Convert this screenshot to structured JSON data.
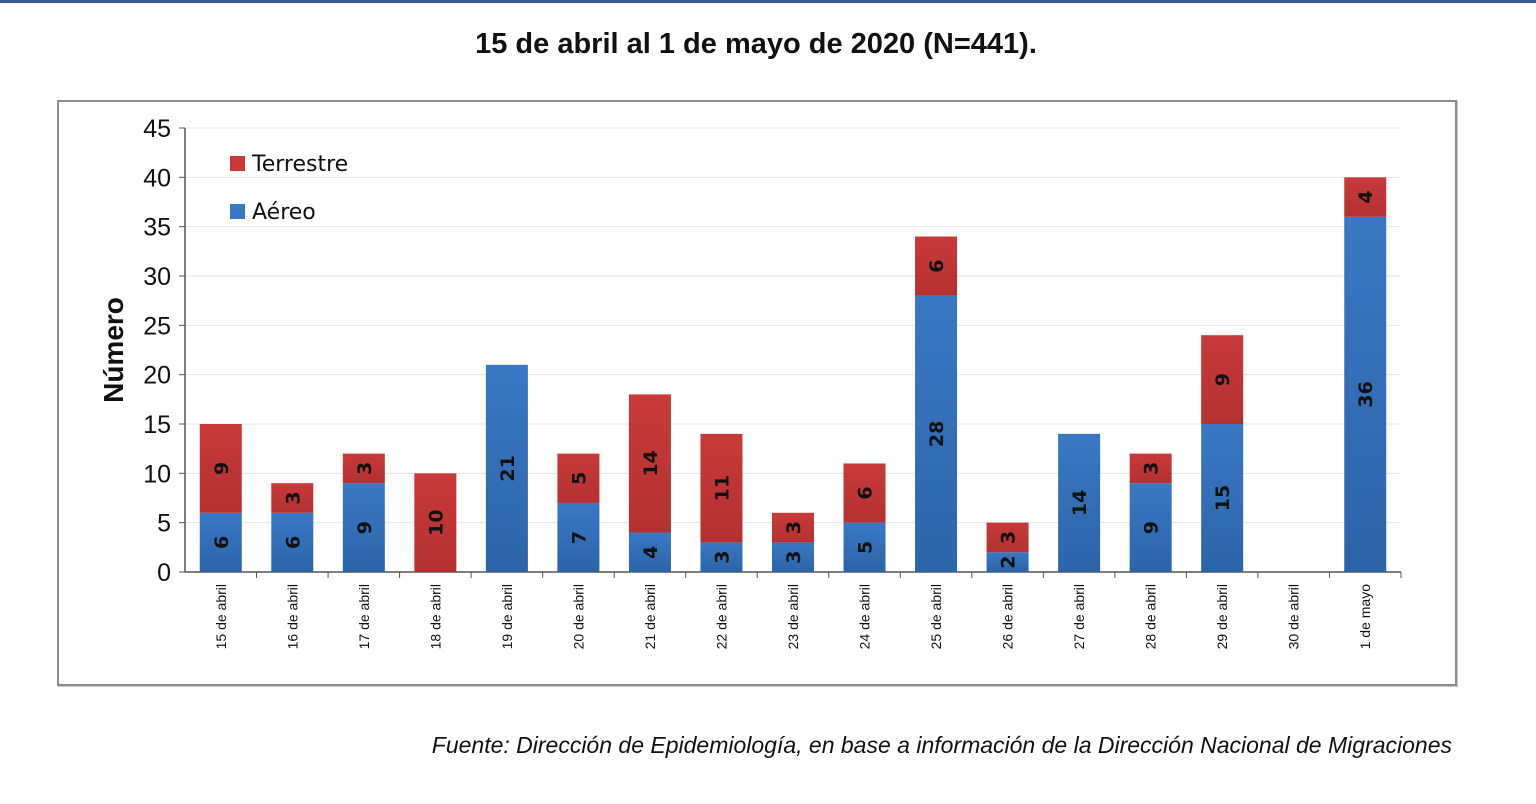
{
  "title": "15 de abril al 1 de mayo de 2020 (N=441).",
  "source": "Fuente: Dirección de Epidemiología, en base a información de la Dirección Nacional de Migraciones",
  "chart_data": {
    "type": "bar",
    "stacked": true,
    "title": "15 de abril al 1 de mayo de 2020 (N=441).",
    "xlabel": "",
    "ylabel": "Número",
    "ylim": [
      0,
      45
    ],
    "yticks": [
      0,
      5,
      10,
      15,
      20,
      25,
      30,
      35,
      40,
      45
    ],
    "grid": true,
    "legend_position": "top-left",
    "categories": [
      "15 de abril",
      "16 de abril",
      "17 de abril",
      "18 de abril",
      "19 de abril",
      "20 de abril",
      "21 de abril",
      "22 de abril",
      "23 de abril",
      "24 de abril",
      "25 de abril",
      "26 de abril",
      "27 de abril",
      "28 de abril",
      "29 de abril",
      "30 de abril",
      "1 de mayo"
    ],
    "series": [
      {
        "name": "Aéreo",
        "color": "#3a78c4",
        "values": [
          6,
          6,
          9,
          0,
          21,
          7,
          4,
          3,
          3,
          5,
          28,
          2,
          14,
          9,
          15,
          0,
          36
        ]
      },
      {
        "name": "Terrestre",
        "color": "#c8393a",
        "values": [
          9,
          3,
          3,
          10,
          0,
          5,
          14,
          11,
          3,
          6,
          6,
          3,
          0,
          3,
          9,
          0,
          4
        ]
      }
    ]
  }
}
